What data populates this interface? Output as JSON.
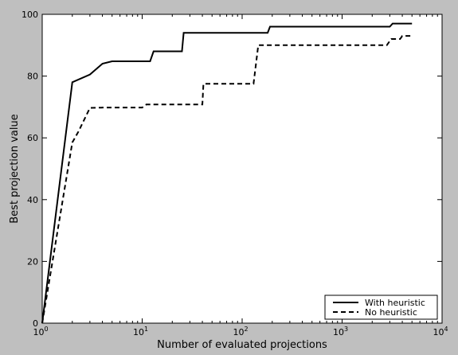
{
  "chart_data": {
    "type": "line",
    "xlabel": "Number of evaluated projections",
    "ylabel": "Best projection value",
    "xscale": "log",
    "xlim": [
      1,
      10000
    ],
    "ylim": [
      0,
      100
    ],
    "x_ticks": [
      {
        "value": 1,
        "base": "10",
        "exp": "0"
      },
      {
        "value": 10,
        "base": "10",
        "exp": "1"
      },
      {
        "value": 100,
        "base": "10",
        "exp": "2"
      },
      {
        "value": 1000,
        "base": "10",
        "exp": "3"
      },
      {
        "value": 10000,
        "base": "10",
        "exp": "4"
      }
    ],
    "y_ticks": [
      0,
      20,
      40,
      60,
      80,
      100
    ],
    "grid": false,
    "legend_position": "lower-right",
    "series": [
      {
        "name": "With heuristic",
        "style": "solid",
        "color": "#000000",
        "points": [
          [
            1,
            0
          ],
          [
            2,
            78
          ],
          [
            3,
            80.5
          ],
          [
            4,
            84
          ],
          [
            5,
            84.8
          ],
          [
            6,
            84.8
          ],
          [
            8,
            84.8
          ],
          [
            12,
            84.8
          ],
          [
            13,
            88
          ],
          [
            25,
            88
          ],
          [
            26,
            94
          ],
          [
            180,
            94
          ],
          [
            190,
            96
          ],
          [
            3000,
            96
          ],
          [
            3200,
            97
          ],
          [
            5000,
            97
          ]
        ]
      },
      {
        "name": "No heuristic",
        "style": "dashed",
        "color": "#000000",
        "points": [
          [
            1,
            0
          ],
          [
            2,
            58.5
          ],
          [
            2.3,
            62
          ],
          [
            3,
            69.7
          ],
          [
            4,
            69.8
          ],
          [
            10,
            69.8
          ],
          [
            11,
            70.8
          ],
          [
            40,
            70.8
          ],
          [
            41,
            77.5
          ],
          [
            130,
            77.5
          ],
          [
            145,
            90
          ],
          [
            2800,
            90
          ],
          [
            3100,
            92
          ],
          [
            3800,
            92
          ],
          [
            4000,
            93
          ],
          [
            5000,
            93
          ]
        ]
      }
    ]
  }
}
